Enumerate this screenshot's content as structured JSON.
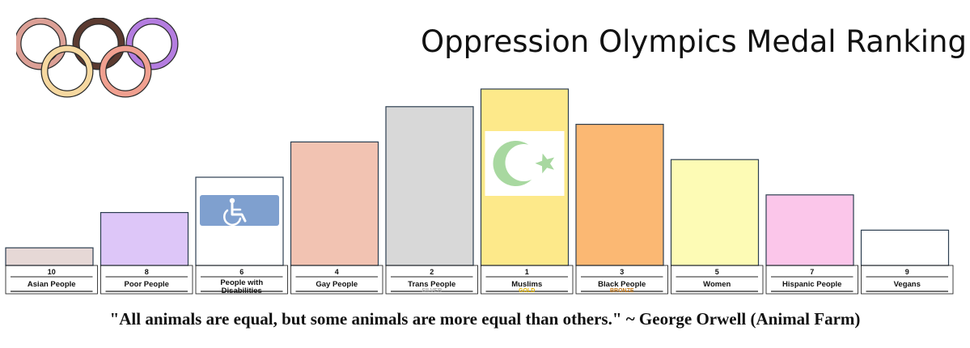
{
  "title": "Oppression Olympics Medal Ranking",
  "quote": "\"All animals are equal, but some animals are more equal than others.\" ~ George Orwell (Animal Farm)",
  "logo": {
    "ring_colors": [
      "#dca096",
      "#5b3a30",
      "#b47de0",
      "#f6d8a0",
      "#f0a090"
    ]
  },
  "chart_data": {
    "type": "bar",
    "title": "Oppression Olympics Medal Ranking",
    "categories": [
      "Asian People",
      "Poor People",
      "People with Disabilities",
      "Gay People",
      "Trans People",
      "Muslims",
      "Black People",
      "Women",
      "Hispanic People",
      "Vegans"
    ],
    "ranks": [
      "10",
      "8",
      "6",
      "4",
      "2",
      "1",
      "3",
      "5",
      "7",
      "9"
    ],
    "medals": [
      "",
      "",
      "",
      "",
      "SILVER",
      "GOLD",
      "BRONZE",
      "",
      "",
      ""
    ],
    "values": [
      1,
      3,
      5,
      7,
      9,
      10,
      8,
      6,
      4,
      2
    ],
    "bar_colors": [
      "#e6d8d6",
      "#ddc6f8",
      "#ffffff",
      "#f2c3b2",
      "#d8d8d8",
      "#fde98a",
      "#fbb873",
      "#fdfbb5",
      "#fbc6ea",
      "#ffffff"
    ],
    "medal_colors": {
      "SILVER": "#a8a8a8",
      "GOLD": "#e8b800",
      "BRONZE": "#c87a1a"
    },
    "icons": [
      "",
      "",
      "wheelchair-icon",
      "",
      "",
      "crescent-star-icon",
      "",
      "",
      "",
      ""
    ],
    "xlabel": "",
    "ylabel": "",
    "grid": false,
    "legend": "none"
  }
}
